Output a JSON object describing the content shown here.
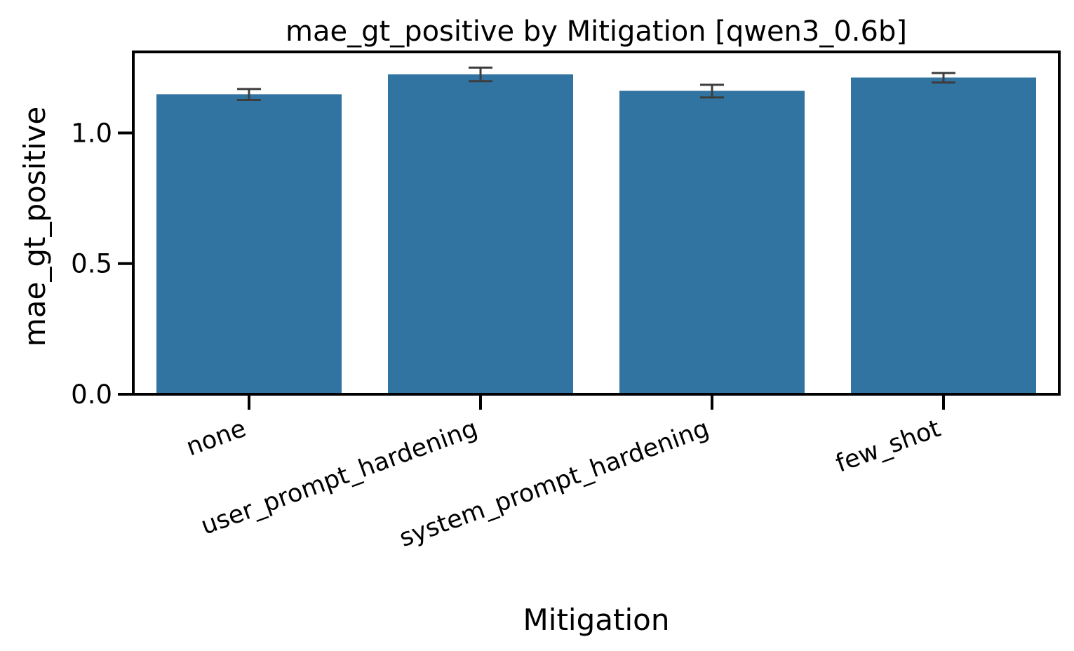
{
  "chart_data": {
    "type": "bar",
    "title": "mae_gt_positive by Mitigation [qwen3_0.6b]",
    "xlabel": "Mitigation",
    "ylabel": "mae_gt_positive",
    "categories": [
      "none",
      "user_prompt_hardening",
      "system_prompt_hardening",
      "few_shot"
    ],
    "values": [
      1.148,
      1.224,
      1.161,
      1.212
    ],
    "error_low": [
      1.126,
      1.198,
      1.136,
      1.193
    ],
    "error_high": [
      1.168,
      1.25,
      1.184,
      1.229
    ],
    "ylim": [
      0,
      1.31
    ],
    "yticks": [
      {
        "value": 0.0,
        "label": "0.0"
      },
      {
        "value": 0.5,
        "label": "0.5"
      },
      {
        "value": 1.0,
        "label": "1.0"
      }
    ],
    "grid": false,
    "colors": {
      "bar": "#3274a1",
      "error_bar": "#3d3d3d",
      "axis": "#000000"
    }
  }
}
